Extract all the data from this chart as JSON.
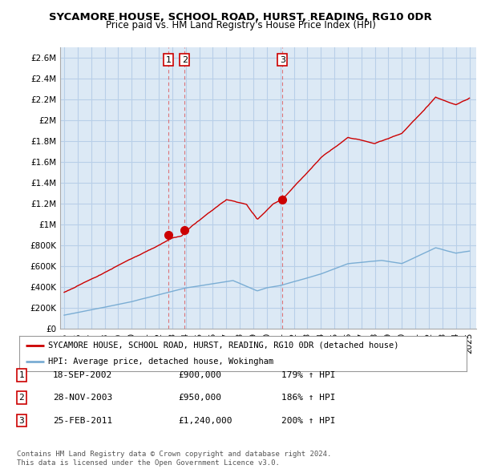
{
  "title": "SYCAMORE HOUSE, SCHOOL ROAD, HURST, READING, RG10 0DR",
  "subtitle": "Price paid vs. HM Land Registry's House Price Index (HPI)",
  "ylabel_ticks": [
    "£0",
    "£200K",
    "£400K",
    "£600K",
    "£800K",
    "£1M",
    "£1.2M",
    "£1.4M",
    "£1.6M",
    "£1.8M",
    "£2M",
    "£2.2M",
    "£2.4M",
    "£2.6M"
  ],
  "ytick_values": [
    0,
    200000,
    400000,
    600000,
    800000,
    1000000,
    1200000,
    1400000,
    1600000,
    1800000,
    2000000,
    2200000,
    2400000,
    2600000
  ],
  "ylim": [
    0,
    2700000
  ],
  "xlim_start": 1994.7,
  "xlim_end": 2025.5,
  "red_line_color": "#cc0000",
  "blue_line_color": "#7aadd4",
  "chart_bg_color": "#dce9f5",
  "background_color": "#ffffff",
  "grid_color": "#b8cfe8",
  "sale_points": [
    {
      "year": 2002.72,
      "price": 900000,
      "label": "1"
    },
    {
      "year": 2003.91,
      "price": 950000,
      "label": "2"
    },
    {
      "year": 2011.15,
      "price": 1240000,
      "label": "3"
    }
  ],
  "transaction_table": [
    {
      "num": "1",
      "date": "18-SEP-2002",
      "price": "£900,000",
      "hpi": "179% ↑ HPI"
    },
    {
      "num": "2",
      "date": "28-NOV-2003",
      "price": "£950,000",
      "hpi": "186% ↑ HPI"
    },
    {
      "num": "3",
      "date": "25-FEB-2011",
      "price": "£1,240,000",
      "hpi": "200% ↑ HPI"
    }
  ],
  "legend_red": "SYCAMORE HOUSE, SCHOOL ROAD, HURST, READING, RG10 0DR (detached house)",
  "legend_blue": "HPI: Average price, detached house, Wokingham",
  "footer": "Contains HM Land Registry data © Crown copyright and database right 2024.\nThis data is licensed under the Open Government Licence v3.0.",
  "xtick_years": [
    1995,
    1996,
    1997,
    1998,
    1999,
    2000,
    2001,
    2002,
    2003,
    2004,
    2005,
    2006,
    2007,
    2008,
    2009,
    2010,
    2011,
    2012,
    2013,
    2014,
    2015,
    2016,
    2017,
    2018,
    2019,
    2020,
    2021,
    2022,
    2023,
    2024,
    2025
  ]
}
